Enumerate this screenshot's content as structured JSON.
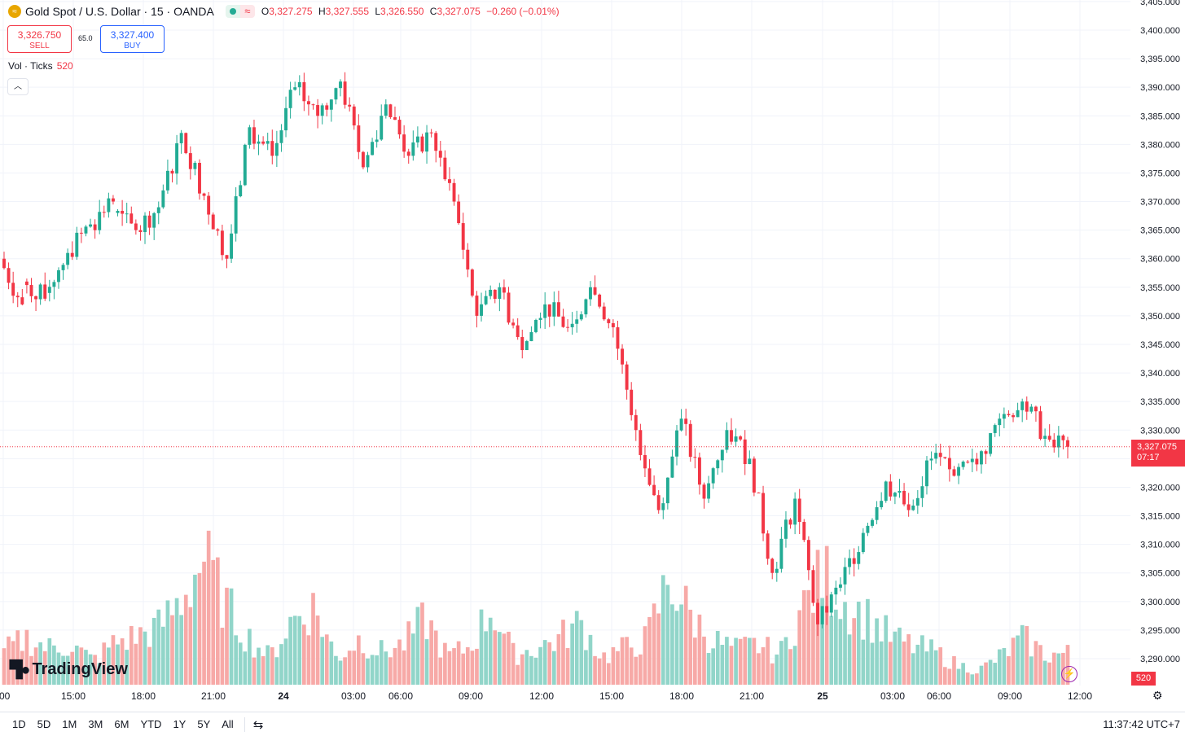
{
  "legend": {
    "symbol": "Gold Spot / U.S. Dollar · 15 · OANDA",
    "ohlc": [
      {
        "k": "O",
        "v": "3,327.275"
      },
      {
        "k": "H",
        "v": "3,327.555"
      },
      {
        "k": "L",
        "v": "3,326.550"
      },
      {
        "k": "C",
        "v": "3,327.075"
      }
    ],
    "change": "−0.260 (−0.01%)"
  },
  "trade": {
    "sell_price": "3,326.750",
    "sell_label": "SELL",
    "spread": "65.0",
    "buy_price": "3,327.400",
    "buy_label": "BUY"
  },
  "volume_legend": {
    "label": "Vol · Ticks",
    "value": "520"
  },
  "logo_text": "TradingView",
  "last_price": {
    "price": "3,327.075",
    "countdown": "07:17"
  },
  "last_volume": "520",
  "bottom": {
    "ranges": [
      "1D",
      "5D",
      "1M",
      "3M",
      "6M",
      "YTD",
      "1Y",
      "5Y",
      "All"
    ],
    "clock": "11:37:42 UTC+7"
  },
  "colors": {
    "up": "#22ab94",
    "down": "#f23645",
    "vol_up": "#91d5c9",
    "vol_down": "#f7a9a7"
  },
  "chart_data": {
    "type": "candlestick",
    "interval": "15",
    "price_axis": {
      "ticks": [
        "3,290.000",
        "3,295.000",
        "3,300.000",
        "3,305.000",
        "3,310.000",
        "3,315.000",
        "3,320.000",
        "3,325.000",
        "3,330.000",
        "3,335.000",
        "3,340.000",
        "3,345.000",
        "3,350.000",
        "3,355.000",
        "3,360.000",
        "3,365.000",
        "3,370.000",
        "3,375.000",
        "3,380.000",
        "3,385.000",
        "3,390.000",
        "3,395.000",
        "3,400.000",
        "3,405.000"
      ],
      "range": [
        3288,
        3406
      ]
    },
    "time_axis": {
      "ticks": [
        ":00",
        "15:00",
        "18:00",
        "21:00",
        "24",
        "03:00",
        "06:00",
        "09:00",
        "12:00",
        "15:00",
        "18:00",
        "21:00",
        "25",
        "03:00",
        "06:00",
        "09:00",
        "12:00"
      ],
      "bold": [
        "24",
        "25"
      ]
    },
    "anchors": [
      [
        3360,
        3352
      ],
      [
        3356,
        3353
      ],
      [
        3354,
        3361
      ],
      [
        3361,
        3366
      ],
      [
        3366,
        3370
      ],
      [
        3368,
        3365
      ],
      [
        3365,
        3369
      ],
      [
        3369,
        3382
      ],
      [
        3382,
        3371
      ],
      [
        3371,
        3360
      ],
      [
        3360,
        3383
      ],
      [
        3383,
        3378
      ],
      [
        3378,
        3390
      ],
      [
        3390,
        3385
      ],
      [
        3385,
        3391
      ],
      [
        3391,
        3376
      ],
      [
        3376,
        3387
      ],
      [
        3387,
        3378
      ],
      [
        3378,
        3382
      ],
      [
        3382,
        3370
      ],
      [
        3370,
        3350
      ],
      [
        3350,
        3355
      ],
      [
        3355,
        3344
      ],
      [
        3344,
        3352
      ],
      [
        3352,
        3348
      ],
      [
        3348,
        3355
      ],
      [
        3355,
        3348
      ],
      [
        3348,
        3330
      ],
      [
        3330,
        3316
      ],
      [
        3316,
        3332
      ],
      [
        3332,
        3318
      ],
      [
        3318,
        3330
      ],
      [
        3330,
        3325
      ],
      [
        3325,
        3305
      ],
      [
        3305,
        3318
      ],
      [
        3318,
        3296
      ],
      [
        3296,
        3303
      ],
      [
        3303,
        3312
      ],
      [
        3312,
        3321
      ],
      [
        3321,
        3316
      ],
      [
        3316,
        3325
      ],
      [
        3325,
        3322
      ],
      [
        3322,
        3324
      ],
      [
        3324,
        3332
      ],
      [
        3332,
        3335
      ],
      [
        3335,
        3329
      ],
      [
        3329,
        3327.075
      ]
    ],
    "volume_range": [
      0,
      1400
    ],
    "volume_anchors": [
      300,
      420,
      330,
      360,
      220,
      380,
      440,
      520,
      770,
      1150,
      720,
      430,
      250,
      590,
      700,
      240,
      410,
      300,
      360,
      600,
      260,
      340,
      700,
      270,
      330,
      410,
      560,
      250,
      330,
      410,
      960,
      620,
      400,
      320,
      360,
      270,
      680,
      1000,
      730,
      600,
      430,
      350,
      300,
      180,
      130,
      260,
      420,
      270,
      280
    ]
  }
}
